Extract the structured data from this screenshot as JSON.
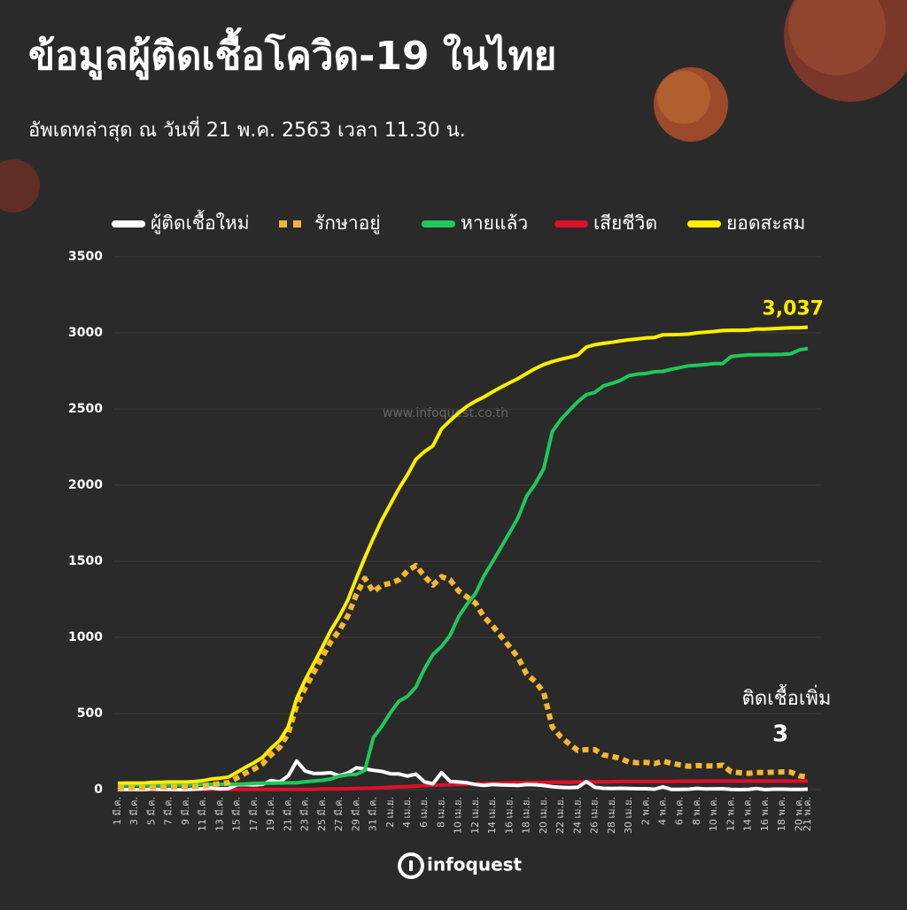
{
  "chart_data": {
    "type": "line",
    "title": "ข้อมูลผู้ติดเชื้อโควิด-19 ในไทย",
    "subtitle": "อัพเดทล่าสุด ณ วันที่   21 พ.ค. 2563 เวลา 11.30 น.",
    "watermark": "www.infoquest.co.th",
    "logo": "infoquest",
    "annotation": "ติดเชื้อเพิ่ม",
    "categories": [
      "1 มี.ค.",
      null,
      "3 มี.ค.",
      null,
      "5 มี.ค.",
      null,
      "7 มี.ค.",
      null,
      "9 มี.ค.",
      null,
      "11 มี.ค.",
      null,
      "13 มี.ค.",
      null,
      "15 มี.ค.",
      null,
      "17 มี.ค.",
      null,
      "19 มี.ค.",
      null,
      "21 มี.ค.",
      null,
      "23 มี.ค.",
      null,
      "25 มี.ค.",
      null,
      "27 มี.ค.",
      null,
      "29 มี.ค.",
      null,
      "31 มี.ค.",
      null,
      "2 เม.ย.",
      null,
      "4 เม.ย.",
      null,
      "6 เม.ย.",
      null,
      "8 เม.ย.",
      null,
      "10 เม.ย.",
      null,
      "12 เม.ย.",
      null,
      "14 เม.ย.",
      null,
      "16 เม.ย.",
      null,
      "18 เม.ย.",
      null,
      "20 เม.ย.",
      null,
      "22 เม.ย.",
      null,
      "24 เม.ย.",
      null,
      "26 เม.ย.",
      null,
      "28 เม.ย.",
      null,
      "30 เม.ย.",
      null,
      "2 พ.ค.",
      null,
      "4 พ.ค.",
      null,
      "6 พ.ค.",
      null,
      "8 พ.ค.",
      null,
      "10 พ.ค.",
      null,
      "12 พ.ค.",
      null,
      "14 พ.ค.",
      null,
      "16 พ.ค.",
      null,
      "18 พ.ค.",
      null,
      "20 พ.ค.",
      "21 พ.ค."
    ],
    "ylim": [
      0,
      3500
    ],
    "yticks": [
      0,
      500,
      1000,
      1500,
      2000,
      2500,
      3000,
      3500
    ],
    "grid": true,
    "legend": "top",
    "series": [
      {
        "name": "ผู้ติดเชื้อใหม่",
        "color": "#ffffff",
        "dash": false,
        "values": [
          0,
          1,
          0,
          0,
          4,
          1,
          2,
          0,
          0,
          3,
          6,
          11,
          5,
          7,
          32,
          33,
          30,
          35,
          60,
          50,
          89,
          188,
          122,
          106,
          107,
          111,
          91,
          109,
          143,
          136,
          127,
          120,
          104,
          103,
          89,
          102,
          51,
          38,
          111,
          54,
          50,
          45,
          33,
          28,
          34,
          30,
          29,
          28,
          33,
          32,
          27,
          19,
          15,
          13,
          15,
          53,
          15,
          9,
          7,
          9,
          7,
          6,
          6,
          3,
          18,
          1,
          1,
          3,
          8,
          4,
          5,
          6,
          2,
          0,
          1,
          7,
          0,
          3,
          3,
          2,
          1,
          3
        ],
        "value_labels": [
          null,
          null,
          null,
          null,
          null,
          null,
          null,
          null,
          null,
          null,
          null,
          null,
          null,
          null,
          null,
          null,
          null,
          null,
          null,
          null,
          null,
          null,
          null,
          null,
          null,
          null,
          null,
          null,
          null,
          null,
          null,
          null,
          null,
          null,
          null,
          null,
          null,
          null,
          null,
          null,
          null,
          null,
          null,
          null,
          null,
          null,
          null,
          null,
          null,
          null,
          null,
          null,
          null,
          null,
          null,
          null,
          null,
          null,
          null,
          null,
          null,
          null,
          null,
          null,
          null,
          null,
          null,
          null,
          null,
          null,
          null,
          null,
          null,
          null,
          null,
          null,
          null,
          null,
          null,
          null,
          null,
          "3"
        ]
      },
      {
        "name": "รักษาอยู่",
        "color": "#f5b731",
        "dash": true,
        "values": [
          11,
          11,
          11,
          11,
          15,
          16,
          18,
          18,
          18,
          19,
          24,
          34,
          39,
          46,
          77,
          109,
          135,
          169,
          229,
          278,
          366,
          554,
          668,
          769,
          869,
          971,
          1044,
          1142,
          1281,
          1388,
          1299,
          1343,
          1355,
          1378,
          1435,
          1472,
          1401,
          1343,
          1399,
          1378,
          1305,
          1265,
          1225,
          1134,
          1075,
          1007,
          937,
          867,
          758,
          711,
          637,
          411,
          347,
          300,
          257,
          262,
          262,
          228,
          218,
          206,
          181,
          177,
          179,
          171,
          186,
          173,
          162,
          153,
          158,
          156,
          155,
          161,
          117,
          111,
          107,
          113,
          112,
          115,
          116,
          115,
          90,
          84
        ]
      },
      {
        "name": "หายแล้ว",
        "color": "#1ec85a",
        "dash": false,
        "values": [
          30,
          31,
          31,
          31,
          31,
          31,
          31,
          31,
          31,
          33,
          34,
          35,
          35,
          35,
          36,
          37,
          41,
          42,
          42,
          43,
          44,
          44,
          52,
          57,
          61,
          70,
          88,
          97,
          100,
          127,
          342,
          416,
          505,
          581,
          612,
          674,
          793,
          888,
          940,
          1013,
          1135,
          1218,
          1288,
          1405,
          1497,
          1593,
          1689,
          1787,
          1928,
          2007,
          2108,
          2352,
          2430,
          2490,
          2547,
          2594,
          2609,
          2652,
          2668,
          2687,
          2719,
          2729,
          2733,
          2744,
          2747,
          2761,
          2772,
          2784,
          2787,
          2792,
          2798,
          2798,
          2844,
          2850,
          2855,
          2856,
          2857,
          2857,
          2859,
          2862,
          2888,
          2897
        ]
      },
      {
        "name": "เสียชีวิต",
        "color": "#e0102a",
        "dash": false,
        "values": [
          1,
          1,
          1,
          1,
          1,
          1,
          1,
          1,
          1,
          1,
          1,
          1,
          1,
          1,
          1,
          1,
          1,
          1,
          1,
          1,
          1,
          1,
          1,
          1,
          4,
          4,
          4,
          6,
          7,
          9,
          10,
          12,
          15,
          19,
          20,
          23,
          26,
          27,
          30,
          32,
          33,
          35,
          38,
          40,
          41,
          43,
          46,
          46,
          47,
          47,
          47,
          48,
          49,
          49,
          50,
          51,
          51,
          51,
          52,
          54,
          54,
          54,
          54,
          54,
          54,
          54,
          55,
          55,
          55,
          56,
          56,
          56,
          56,
          56,
          56,
          56,
          56,
          56,
          56,
          56,
          56,
          56
        ]
      },
      {
        "name": "ยอดสะสม",
        "color": "#ffee00",
        "dash": false,
        "values": [
          42,
          43,
          43,
          43,
          47,
          48,
          50,
          50,
          50,
          53,
          59,
          70,
          75,
          82,
          114,
          147,
          177,
          212,
          272,
          322,
          411,
          599,
          721,
          827,
          934,
          1045,
          1136,
          1245,
          1388,
          1524,
          1651,
          1771,
          1875,
          1978,
          2067,
          2169,
          2220,
          2258,
          2369,
          2423,
          2473,
          2518,
          2551,
          2579,
          2613,
          2643,
          2672,
          2700,
          2733,
          2765,
          2792,
          2811,
          2826,
          2839,
          2854,
          2907,
          2922,
          2931,
          2938,
          2947,
          2954,
          2960,
          2966,
          2969,
          2987,
          2988,
          2989,
          2992,
          3000,
          3004,
          3009,
          3015,
          3017,
          3017,
          3018,
          3025,
          3025,
          3028,
          3031,
          3033,
          3034,
          3037
        ],
        "value_labels": [
          null,
          null,
          null,
          null,
          null,
          null,
          null,
          null,
          null,
          null,
          null,
          null,
          null,
          null,
          null,
          null,
          null,
          null,
          null,
          null,
          null,
          null,
          null,
          null,
          null,
          null,
          null,
          null,
          null,
          null,
          null,
          null,
          null,
          null,
          null,
          null,
          null,
          null,
          null,
          null,
          null,
          null,
          null,
          null,
          null,
          null,
          null,
          null,
          null,
          null,
          null,
          null,
          null,
          null,
          null,
          null,
          null,
          null,
          null,
          null,
          null,
          null,
          null,
          null,
          null,
          null,
          null,
          null,
          null,
          null,
          null,
          null,
          null,
          null,
          null,
          null,
          null,
          null,
          null,
          null,
          null,
          "3,037"
        ]
      }
    ]
  }
}
